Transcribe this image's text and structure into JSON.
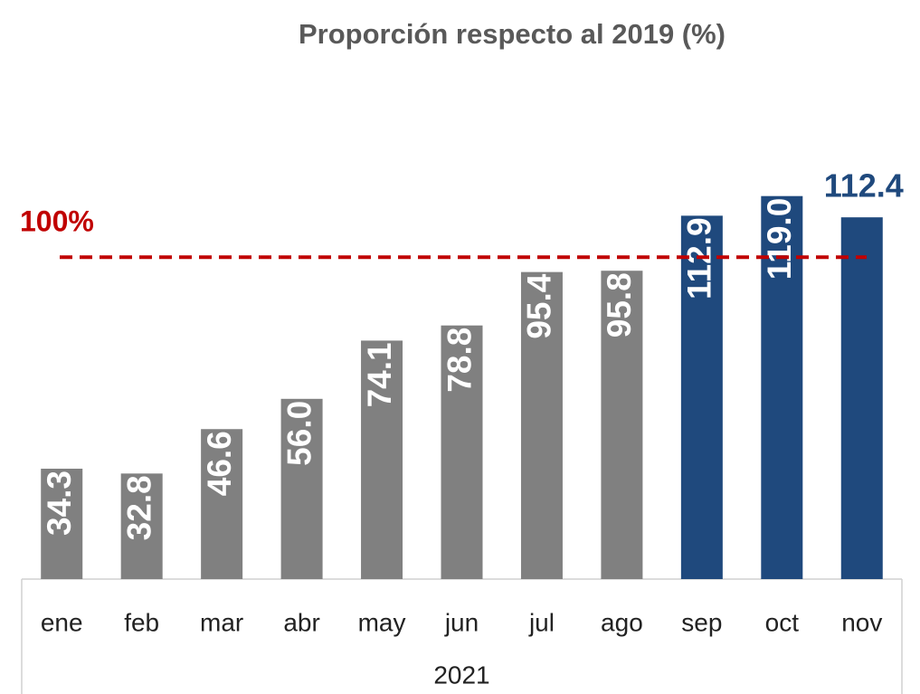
{
  "chart_data": {
    "type": "bar",
    "title": "Proporción respecto al 2019 (%)",
    "categories": [
      "ene",
      "feb",
      "mar",
      "abr",
      "may",
      "jun",
      "jul",
      "ago",
      "sep",
      "oct",
      "nov"
    ],
    "values": [
      34.3,
      32.8,
      46.6,
      56.0,
      74.1,
      78.8,
      95.4,
      95.8,
      112.9,
      119.0,
      112.4
    ],
    "value_labels": [
      "34.3",
      "32.8",
      "46.6",
      "56.0",
      "74.1",
      "78.8",
      "95.4",
      "95.8",
      "112.9",
      "119.0",
      "112.4"
    ],
    "colors": [
      "#808080",
      "#808080",
      "#808080",
      "#808080",
      "#808080",
      "#808080",
      "#808080",
      "#808080",
      "#1f497d",
      "#1f497d",
      "#1f497d"
    ],
    "category_group_label": "2021",
    "reference_line": {
      "value": 100,
      "label": "100%",
      "color": "#c00000"
    },
    "ylim": [
      0,
      140
    ]
  }
}
